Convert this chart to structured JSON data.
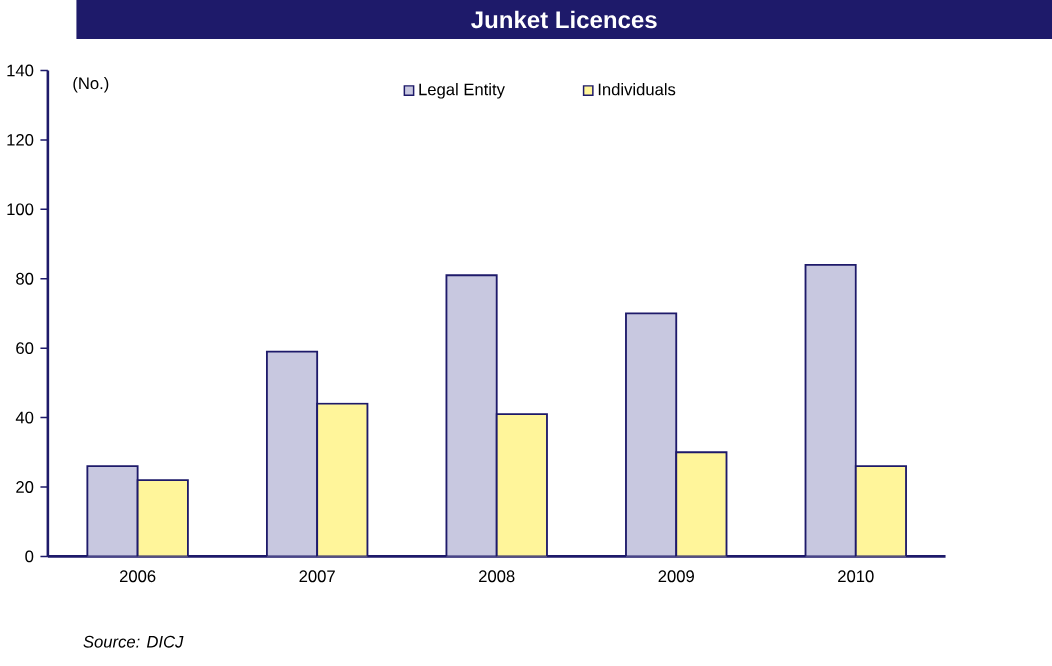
{
  "chart_data": {
    "type": "bar",
    "title": "Junket Licences",
    "ylabel": "(No.)",
    "categories": [
      "2006",
      "2007",
      "2008",
      "2009",
      "2010"
    ],
    "series": [
      {
        "name": "Legal Entity",
        "color": "#c8c8e0",
        "values": [
          26,
          59,
          81,
          70,
          84
        ]
      },
      {
        "name": "Individuals",
        "color": "#fff59a",
        "values": [
          22,
          44,
          41,
          30,
          26
        ]
      }
    ],
    "ylim": [
      0,
      140
    ],
    "yticks": [
      0,
      20,
      40,
      60,
      80,
      100,
      120,
      140
    ],
    "legend": "top",
    "grid": false,
    "annotations": [
      "Source: DICJ"
    ]
  }
}
